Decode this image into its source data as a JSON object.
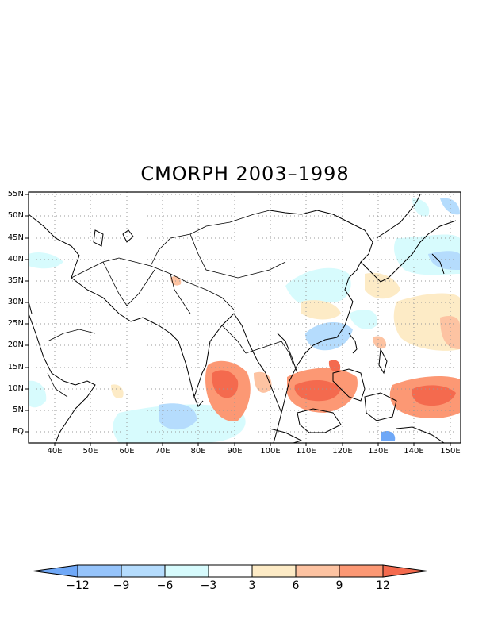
{
  "title": "CMORPH 2003–1998",
  "map": {
    "lon_labels": [
      "40E",
      "50E",
      "60E",
      "70E",
      "80E",
      "90E",
      "100E",
      "110E",
      "120E",
      "130E",
      "140E",
      "150E"
    ],
    "lon_values": [
      40,
      50,
      60,
      70,
      80,
      90,
      100,
      110,
      120,
      130,
      140,
      150
    ],
    "lat_labels": [
      "55N",
      "50N",
      "45N",
      "40N",
      "35N",
      "30N",
      "25N",
      "20N",
      "15N",
      "10N",
      "5N",
      "EQ"
    ],
    "lat_values": [
      55,
      50,
      45,
      40,
      35,
      30,
      25,
      20,
      15,
      10,
      5,
      0
    ],
    "lon_range": [
      32,
      152
    ],
    "lat_range": [
      -2,
      56
    ],
    "grid": "dotted"
  },
  "colorbar": {
    "labels": [
      "−12",
      "−9",
      "−6",
      "−3",
      "3",
      "6",
      "9",
      "12"
    ],
    "colors": [
      "#6fa8f7",
      "#96c4fb",
      "#b5dcfd",
      "#d7fbfd",
      "#ffffff",
      "#fdebc6",
      "#fdc3a2",
      "#fc9874",
      "#f46a4e"
    ]
  }
}
